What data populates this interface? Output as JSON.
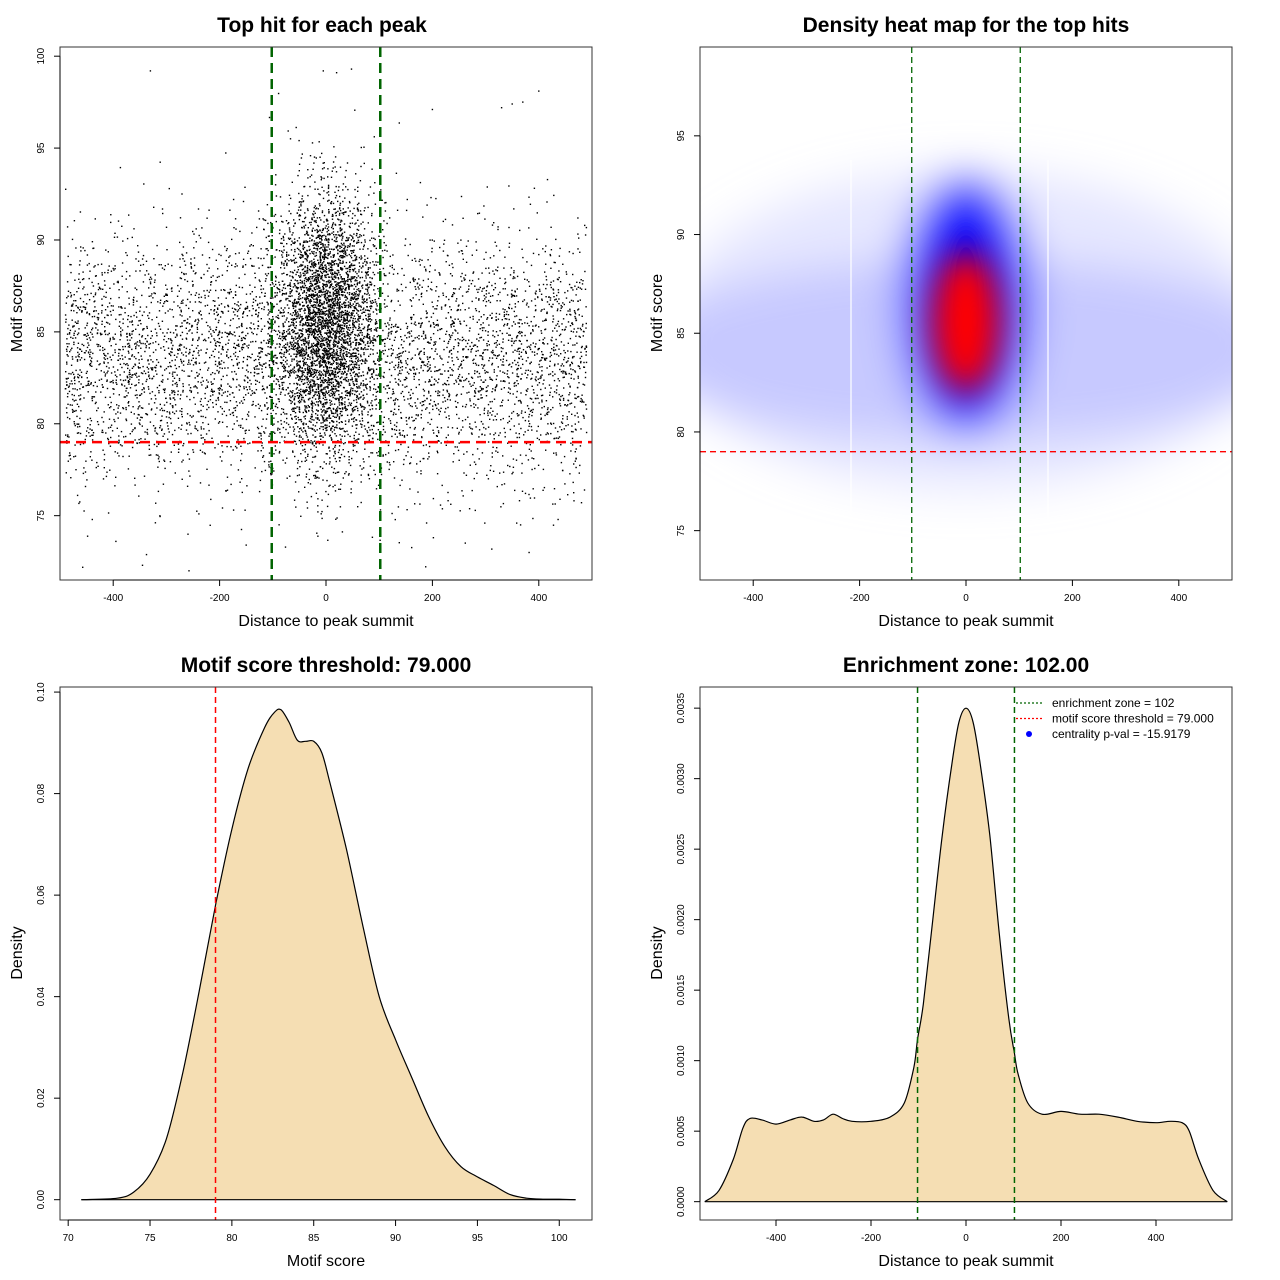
{
  "chart_data": [
    {
      "type": "scatter",
      "title": "Top hit for each peak",
      "xlabel": "Distance to peak summit",
      "ylabel": "Motif score",
      "xlim": [
        -500,
        500
      ],
      "ylim": [
        71.5,
        100.5
      ],
      "x_ticks": [
        "-400",
        "-200",
        "0",
        "200",
        "400"
      ],
      "y_ticks": [
        "75",
        "80",
        "85",
        "90",
        "95",
        "100"
      ],
      "point_color": "#000000",
      "distribution": {
        "background": {
          "x_range": [
            -490,
            490
          ],
          "y_mean": 83.5,
          "y_sd": 3.4
        },
        "central_cluster": {
          "x_mean": 0,
          "x_sd": 45,
          "y_mean": 85.5,
          "y_sd": 3.5
        }
      },
      "outlier_points": [
        {
          "x": -330,
          "y": 99.2
        },
        {
          "x": -5,
          "y": 99.2
        },
        {
          "x": 20,
          "y": 99.1
        },
        {
          "x": 48,
          "y": 99.3
        },
        {
          "x": 330,
          "y": 97.2
        },
        {
          "x": 350,
          "y": 97.4
        },
        {
          "x": 370,
          "y": 97.5
        },
        {
          "x": 400,
          "y": 98.1
        },
        {
          "x": 200,
          "y": 97.1
        },
        {
          "x": -395,
          "y": 73.6
        },
        {
          "x": -345,
          "y": 72.3
        },
        {
          "x": -150,
          "y": 73.4
        }
      ],
      "vlines": {
        "values": [
          -102,
          102
        ],
        "color": "#006400",
        "style": "dashed"
      },
      "hline": {
        "value": 79,
        "color": "#ff0000",
        "style": "dashed"
      }
    },
    {
      "type": "heatmap",
      "title": "Density heat map for the top hits",
      "xlabel": "Distance to peak summit",
      "ylabel": "Motif score",
      "xlim": [
        -500,
        500
      ],
      "ylim": [
        72.5,
        99.5
      ],
      "x_ticks": [
        "-400",
        "-200",
        "0",
        "200",
        "400"
      ],
      "y_ticks": [
        "75",
        "80",
        "85",
        "90",
        "95"
      ],
      "color_scale": [
        "#ffffff",
        "#0000ff",
        "#ff0000"
      ],
      "vlines": {
        "values": [
          -102,
          102
        ],
        "color": "#006400",
        "style": "dashed"
      },
      "hline": {
        "value": 79,
        "color": "#ff0000",
        "style": "dashed"
      }
    },
    {
      "type": "area",
      "title": "Motif score threshold: 79.000",
      "xlabel": "Motif score",
      "ylabel": "Density",
      "xlim": [
        69.5,
        102.0
      ],
      "ylim": [
        -0.004,
        0.101
      ],
      "x_ticks": [
        "70",
        "75",
        "80",
        "85",
        "90",
        "95",
        "100"
      ],
      "y_ticks": [
        "0.00",
        "0.02",
        "0.04",
        "0.06",
        "0.08",
        "0.10"
      ],
      "fill_color": "#f5deb3",
      "x": [
        70.8,
        73,
        74,
        75,
        76,
        77,
        78,
        79,
        80,
        81,
        82,
        82.6,
        83,
        83.5,
        84,
        84.5,
        85,
        85.5,
        86,
        87,
        88,
        89,
        90,
        91,
        92,
        93,
        94,
        95,
        96,
        97,
        98,
        99,
        100,
        101
      ],
      "values": [
        0.0,
        0.0003,
        0.0015,
        0.005,
        0.012,
        0.025,
        0.041,
        0.058,
        0.073,
        0.085,
        0.093,
        0.096,
        0.0965,
        0.094,
        0.0905,
        0.0903,
        0.0903,
        0.088,
        0.082,
        0.069,
        0.054,
        0.04,
        0.0315,
        0.024,
        0.0165,
        0.0105,
        0.0065,
        0.0045,
        0.0028,
        0.001,
        0.0003,
        0.0001,
        0.0001,
        0.0
      ],
      "vlines": {
        "values": [
          79
        ],
        "color": "#ff0000",
        "style": "dashed"
      }
    },
    {
      "type": "area",
      "title": "Enrichment zone: 102.00",
      "xlabel": "Distance to peak summit",
      "ylabel": "Density",
      "xlim": [
        -560,
        560
      ],
      "ylim": [
        -0.00013,
        0.00365
      ],
      "x_ticks": [
        "-400",
        "-200",
        "0",
        "200",
        "400"
      ],
      "y_ticks": [
        "0.0000",
        "0.0005",
        "0.0010",
        "0.0015",
        "0.0020",
        "0.0025",
        "0.0030",
        "0.0035"
      ],
      "fill_color": "#f5deb3",
      "x": [
        -550,
        -520,
        -490,
        -470,
        -455,
        -430,
        -400,
        -370,
        -345,
        -320,
        -300,
        -280,
        -260,
        -240,
        -200,
        -160,
        -130,
        -110,
        -102,
        -90,
        -70,
        -50,
        -30,
        -15,
        0,
        15,
        30,
        50,
        70,
        90,
        102,
        110,
        130,
        160,
        200,
        240,
        280,
        320,
        360,
        400,
        430,
        455,
        470,
        490,
        520,
        550
      ],
      "values": [
        0.0,
        8e-05,
        0.0003,
        0.00052,
        0.00059,
        0.00058,
        0.00055,
        0.00058,
        0.0006,
        0.00057,
        0.00058,
        0.00062,
        0.00059,
        0.00057,
        0.00057,
        0.0006,
        0.0007,
        0.00095,
        0.00115,
        0.0014,
        0.002,
        0.0026,
        0.0031,
        0.0034,
        0.0035,
        0.0034,
        0.0031,
        0.0026,
        0.0019,
        0.0013,
        0.00105,
        0.0009,
        0.0007,
        0.00062,
        0.00064,
        0.00062,
        0.00062,
        0.0006,
        0.00057,
        0.00056,
        0.00057,
        0.00056,
        0.0005,
        0.0003,
        8e-05,
        0.0
      ],
      "vlines": {
        "values": [
          -102,
          102
        ],
        "color": "#006400",
        "style": "dashed"
      },
      "legend": {
        "position": "top-right",
        "items": [
          {
            "label": "enrichment zone = 102",
            "color": "#006400",
            "style": "line"
          },
          {
            "label": "motif score threshold = 79.000",
            "color": "#ff0000",
            "style": "line"
          },
          {
            "label": "centrality p-val = -15.9179",
            "color": "#0000ff",
            "style": "point"
          }
        ]
      }
    }
  ]
}
